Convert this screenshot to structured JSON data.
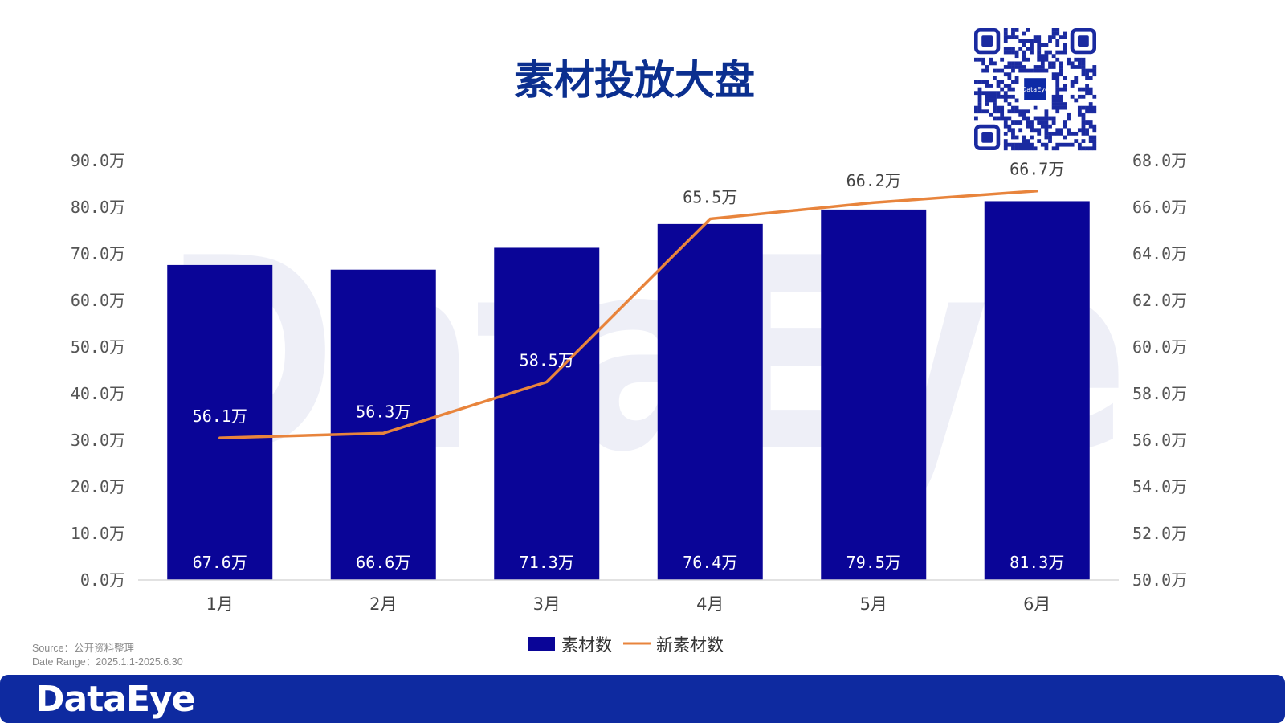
{
  "title": "素材投放大盘",
  "colors": {
    "bar": "#0a0597",
    "line": "#e8843c",
    "title": "#0b2f8f",
    "footer": "#0e2aa0",
    "axis_text": "#555555"
  },
  "source": {
    "line1": "Source：公开资料整理",
    "line2": "Date Range：2025.1.1-2025.6.30"
  },
  "footer": {
    "logo": "DataEye"
  },
  "watermark": "DataEye",
  "qr": {
    "center_label": "DataEye",
    "icon": "qr-code-icon"
  },
  "chart_data": {
    "type": "bar",
    "categories": [
      "1月",
      "2月",
      "3月",
      "4月",
      "5月",
      "6月"
    ],
    "series": [
      {
        "name": "素材数",
        "type": "bar",
        "axis": "left",
        "values": [
          67.6,
          66.6,
          71.3,
          76.4,
          79.5,
          81.3
        ],
        "labels": [
          "67.6万",
          "66.6万",
          "71.3万",
          "76.4万",
          "79.5万",
          "81.3万"
        ]
      },
      {
        "name": "新素材数",
        "type": "line",
        "axis": "right",
        "values": [
          56.1,
          56.3,
          58.5,
          65.5,
          66.2,
          66.7
        ],
        "labels": [
          "56.1万",
          "56.3万",
          "58.5万",
          "65.5万",
          "66.2万",
          "66.7万"
        ]
      }
    ],
    "y_left": {
      "ylim": [
        0,
        90
      ],
      "ticks": [
        0,
        10,
        20,
        30,
        40,
        50,
        60,
        70,
        80,
        90
      ],
      "tick_labels": [
        "0.0万",
        "10.0万",
        "20.0万",
        "30.0万",
        "40.0万",
        "50.0万",
        "60.0万",
        "70.0万",
        "80.0万",
        "90.0万"
      ]
    },
    "y_right": {
      "ylim": [
        50,
        68
      ],
      "ticks": [
        50,
        52,
        54,
        56,
        58,
        60,
        62,
        64,
        66,
        68
      ],
      "tick_labels": [
        "50.0万",
        "52.0万",
        "54.0万",
        "56.0万",
        "58.0万",
        "60.0万",
        "62.0万",
        "64.0万",
        "66.0万",
        "68.0万"
      ]
    },
    "grid": false,
    "legend": "bottom-center"
  }
}
